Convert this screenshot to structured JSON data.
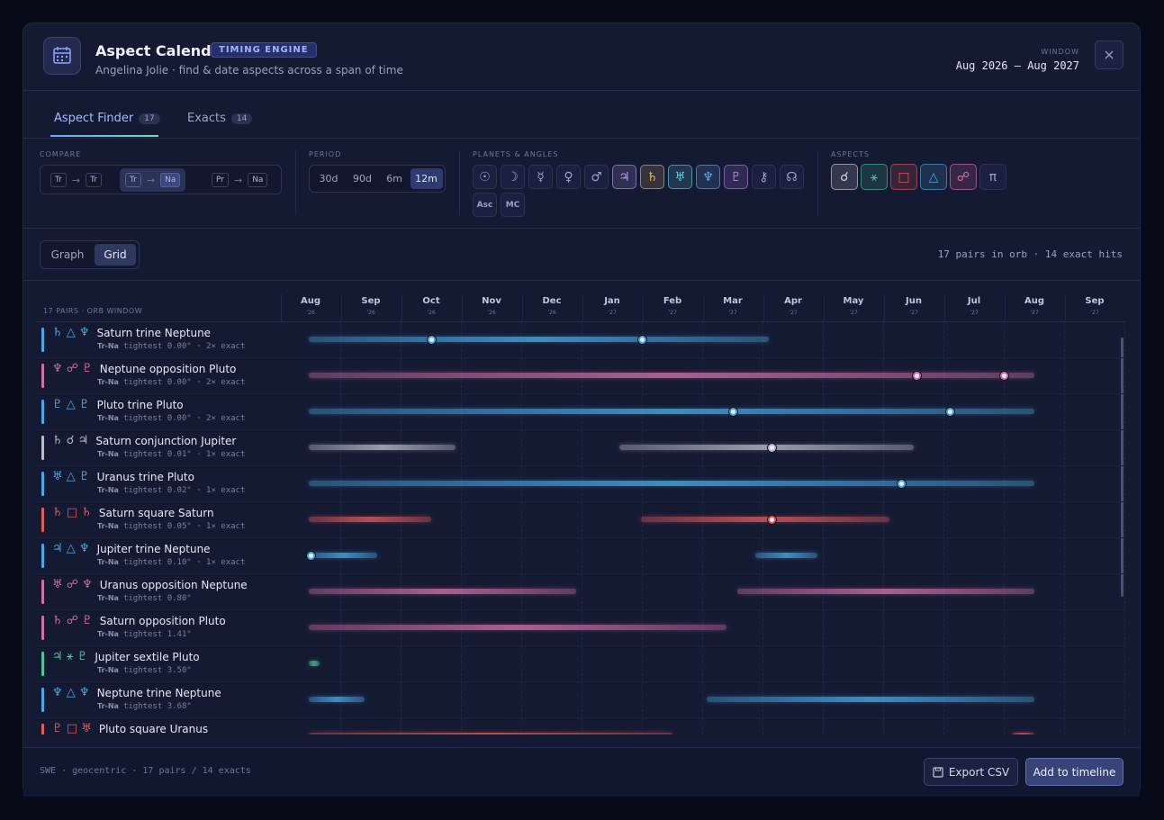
{
  "header": {
    "title": "Aspect Calendar",
    "badge": "TIMING ENGINE",
    "subtitle": "Angelina Jolie · find & date aspects across a span of time",
    "window_label": "WINDOW",
    "window_value": "Aug 2026 – Aug 2027"
  },
  "tabs": [
    {
      "label": "Aspect Finder",
      "count": "17",
      "active": true
    },
    {
      "label": "Exacts",
      "count": "14",
      "active": false
    }
  ],
  "filters": {
    "compare": {
      "label": "COMPARE",
      "options": [
        {
          "from": "Tr",
          "to": "Tr",
          "active": false
        },
        {
          "from": "Tr",
          "to": "Na",
          "active": true
        },
        {
          "from": "Pr",
          "to": "Na",
          "active": false
        }
      ]
    },
    "period": {
      "label": "PERIOD",
      "options": [
        {
          "label": "30d",
          "active": false
        },
        {
          "label": "90d",
          "active": false
        },
        {
          "label": "6m",
          "active": false
        },
        {
          "label": "12m",
          "active": true
        }
      ]
    },
    "planets": {
      "label": "PLANETS & ANGLES",
      "items": [
        {
          "glyph": "☉",
          "active": false,
          "color": "#9aa3c0"
        },
        {
          "glyph": "☽",
          "active": false,
          "color": "#9aa3c0"
        },
        {
          "glyph": "☿",
          "active": false,
          "color": "#9aa3c0"
        },
        {
          "glyph": "♀",
          "active": false,
          "color": "#9aa3c0"
        },
        {
          "glyph": "♂",
          "active": false,
          "color": "#9aa3c0"
        },
        {
          "glyph": "♃",
          "active": true,
          "color": "#b79cf0"
        },
        {
          "glyph": "♄",
          "active": true,
          "color": "#e0b860"
        },
        {
          "glyph": "♅",
          "active": true,
          "color": "#5fd0e0"
        },
        {
          "glyph": "♆",
          "active": true,
          "color": "#6aa8f0"
        },
        {
          "glyph": "♇",
          "active": true,
          "color": "#b07ef0"
        },
        {
          "glyph": "⚷",
          "active": false,
          "color": "#9aa3c0"
        },
        {
          "glyph": "☊",
          "active": false,
          "color": "#9aa3c0"
        },
        {
          "glyph": "Asc",
          "active": false,
          "color": "#9aa3c0"
        },
        {
          "glyph": "MC",
          "active": false,
          "color": "#9aa3c0"
        }
      ]
    },
    "aspects": {
      "label": "ASPECTS",
      "items": [
        {
          "glyph": "☌",
          "active": true,
          "color": "#d0d4e0"
        },
        {
          "glyph": "⚹",
          "active": true,
          "color": "#4fc49a"
        },
        {
          "glyph": "□",
          "active": true,
          "color": "#e05a5a"
        },
        {
          "glyph": "△",
          "active": true,
          "color": "#4aa8e0"
        },
        {
          "glyph": "☍",
          "active": true,
          "color": "#e070b0"
        },
        {
          "glyph": "π",
          "active": false,
          "color": "#9aa3c0"
        }
      ]
    }
  },
  "view": {
    "options": [
      {
        "label": "Graph",
        "active": false
      },
      {
        "label": "Grid",
        "active": true
      }
    ],
    "summary": "17 pairs in orb · 14 exact hits"
  },
  "grid": {
    "label": "17 PAIRS · ORB WINDOW",
    "months": [
      {
        "m": "Aug",
        "y": "’26"
      },
      {
        "m": "Sep",
        "y": "’26"
      },
      {
        "m": "Oct",
        "y": "’26"
      },
      {
        "m": "Nov",
        "y": "’26"
      },
      {
        "m": "Dec",
        "y": "’26"
      },
      {
        "m": "Jan",
        "y": "’27"
      },
      {
        "m": "Feb",
        "y": "’27"
      },
      {
        "m": "Mar",
        "y": "’27"
      },
      {
        "m": "Apr",
        "y": "’27"
      },
      {
        "m": "May",
        "y": "’27"
      },
      {
        "m": "Jun",
        "y": "’27"
      },
      {
        "m": "Jul",
        "y": "’27"
      },
      {
        "m": "Aug",
        "y": "’27"
      },
      {
        "m": "Sep",
        "y": "’27"
      }
    ],
    "rows": [
      {
        "glyphs": "♄ △ ♆",
        "name": "Saturn trine Neptune",
        "tag": "Tr-Na",
        "detail": "tightest 0.00° · 2× exact",
        "color": "#4aa8e0",
        "spans": [
          [
            0,
            7.6
          ]
        ],
        "exacts": [
          2.0,
          5.5
        ]
      },
      {
        "glyphs": "♆ ☍ ♇",
        "name": "Neptune opposition Pluto",
        "tag": "Tr-Na",
        "detail": "tightest 0.00° · 2× exact",
        "color": "#d070a8",
        "spans": [
          [
            0,
            12
          ]
        ],
        "exacts": [
          10.05,
          11.5
        ]
      },
      {
        "glyphs": "♇ △ ♇",
        "name": "Pluto trine Pluto",
        "tag": "Tr-Na",
        "detail": "tightest 0.00° · 2× exact",
        "color": "#4aa8e0",
        "spans": [
          [
            0,
            12
          ]
        ],
        "exacts": [
          7.0,
          10.6
        ]
      },
      {
        "glyphs": "♄ ☌ ♃",
        "name": "Saturn conjunction Jupiter",
        "tag": "Tr-Na",
        "detail": "tightest 0.01° · 1× exact",
        "color": "#b8bcc8",
        "spans": [
          [
            0,
            2.4
          ],
          [
            5.15,
            10.0
          ]
        ],
        "exacts": [
          7.65
        ]
      },
      {
        "glyphs": "♅ △ ♇",
        "name": "Uranus trine Pluto",
        "tag": "Tr-Na",
        "detail": "tightest 0.02° · 1× exact",
        "color": "#4aa8e0",
        "spans": [
          [
            0,
            12
          ]
        ],
        "exacts": [
          9.8
        ]
      },
      {
        "glyphs": "♄ □ ♄",
        "name": "Saturn square Saturn",
        "tag": "Tr-Na",
        "detail": "tightest 0.05° · 1× exact",
        "color": "#e05a5a",
        "spans": [
          [
            0,
            2.0
          ],
          [
            5.5,
            9.6
          ]
        ],
        "exacts": [
          7.65
        ]
      },
      {
        "glyphs": "♃ △ ♆",
        "name": "Jupiter trine Neptune",
        "tag": "Tr-Na",
        "detail": "tightest 0.10° · 1× exact",
        "color": "#4aa8e0",
        "spans": [
          [
            0,
            1.1
          ],
          [
            7.4,
            8.4
          ]
        ],
        "exacts": [
          0
        ]
      },
      {
        "glyphs": "♅ ☍ ♆",
        "name": "Uranus opposition Neptune",
        "tag": "Tr-Na",
        "detail": "tightest 0.80°",
        "color": "#d070a8",
        "spans": [
          [
            0,
            4.4
          ],
          [
            7.1,
            12
          ]
        ],
        "exacts": []
      },
      {
        "glyphs": "♄ ☍ ♇",
        "name": "Saturn opposition Pluto",
        "tag": "Tr-Na",
        "detail": "tightest 1.41°",
        "color": "#d070a8",
        "spans": [
          [
            0,
            6.9
          ]
        ],
        "exacts": []
      },
      {
        "glyphs": "♃ ⚹ ♇",
        "name": "Jupiter sextile Pluto",
        "tag": "Tr-Na",
        "detail": "tightest 3.50°",
        "color": "#4fc49a",
        "spans": [
          [
            0,
            0.15
          ]
        ],
        "exacts": []
      },
      {
        "glyphs": "♆ △ ♆",
        "name": "Neptune trine Neptune",
        "tag": "Tr-Na",
        "detail": "tightest 3.68°",
        "color": "#4aa8e0",
        "spans": [
          [
            0,
            0.9
          ],
          [
            6.6,
            12
          ]
        ],
        "exacts": []
      },
      {
        "glyphs": "♇ □ ♅",
        "name": "Pluto square Uranus",
        "color": "#e05a5a",
        "spans": [
          [
            0,
            6.0
          ],
          [
            11.65,
            12
          ]
        ],
        "exacts": []
      }
    ]
  },
  "footer": {
    "status": "SWE · geocentric · 17 pairs / 14 exacts",
    "export": "Export CSV",
    "add": "Add to timeline"
  }
}
